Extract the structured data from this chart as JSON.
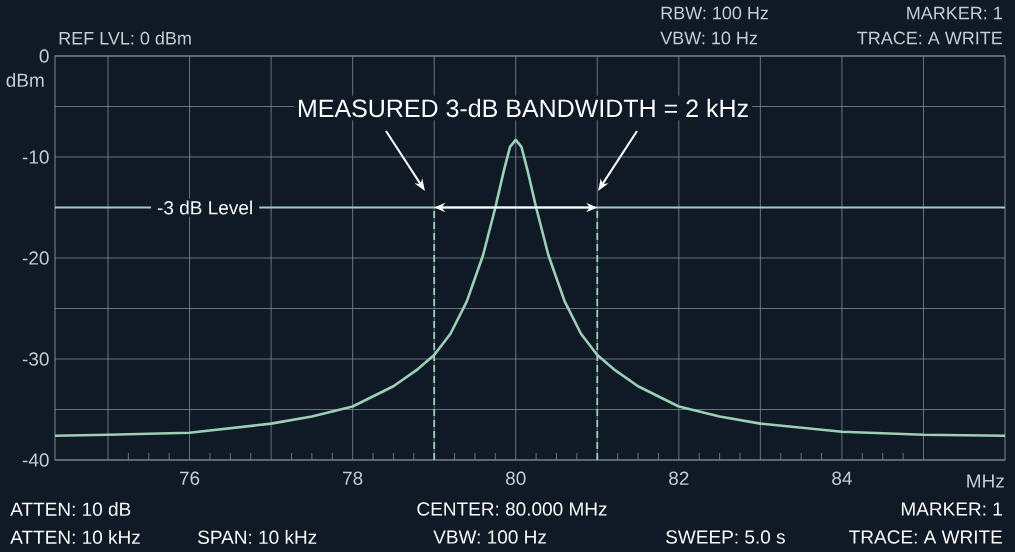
{
  "chart_data": {
    "type": "line",
    "xlabel": "MHz",
    "ylabel": "dBm",
    "x": [
      74.35,
      75,
      76,
      77,
      77.5,
      78,
      78.5,
      78.8,
      79,
      79.2,
      79.4,
      79.5,
      79.6,
      79.75,
      79.85,
      79.93,
      80,
      80.07,
      80.15,
      80.25,
      80.4,
      80.5,
      80.6,
      80.8,
      81,
      81.2,
      81.5,
      82,
      82.5,
      83,
      84,
      85,
      86
    ],
    "series": [
      {
        "color": "#9ccfb6",
        "values": [
          -37.6,
          -37.5,
          -37.3,
          -36.4,
          -35.7,
          -34.7,
          -32.7,
          -31,
          -29.6,
          -27.5,
          -24.3,
          -22,
          -19.7,
          -15,
          -11.5,
          -9,
          -8.3,
          -9,
          -11.5,
          -15,
          -19.7,
          -22,
          -24.3,
          -27.5,
          -29.6,
          -31,
          -32.7,
          -34.7,
          -35.7,
          -36.4,
          -37.2,
          -37.5,
          -37.6
        ]
      }
    ],
    "xlim": [
      74.35,
      86.0
    ],
    "ylim": [
      -40,
      0
    ],
    "xticks": [
      {
        "value": 75,
        "label": null
      },
      76,
      {
        "value": 77,
        "label": null
      },
      78,
      {
        "value": 79,
        "label": null
      },
      80,
      {
        "value": 81,
        "label": null
      },
      82,
      {
        "value": 83,
        "label": null
      },
      84,
      {
        "value": 85,
        "label": null
      }
    ],
    "yticks": [
      -40,
      {
        "value": -35,
        "label": null
      },
      -30,
      {
        "value": -25,
        "label": null
      },
      -20,
      {
        "value": -15,
        "label": null
      },
      -10,
      {
        "value": -5,
        "label": null
      },
      0
    ],
    "grid": true,
    "line_style": "solid",
    "ref_lines": [
      {
        "axis": "y",
        "value": -15,
        "label": "-3 dB Level",
        "color": "#9ccfb6"
      },
      {
        "axis": "x",
        "value": 79,
        "color": "#9ccfb6",
        "line_style": "dashed"
      },
      {
        "axis": "x",
        "value": 81,
        "color": "#9ccfb6",
        "line_style": "dashed"
      }
    ],
    "annotations": [
      "REF LVL: 0 dBm",
      "RBW: 100 Hz",
      "VBW: 10 Hz",
      "MARKER:  1",
      "TRACE: A WRITE",
      "MEASURED 3-dB BANDWIDTH = 2 kHz",
      "ATTEN: 10 dB",
      "CENTER: 80.000 MHz",
      "MARKER: 1",
      "ATTEN: 10 kHz",
      "SPAN: 10 kHz",
      "VBW: 100 Hz",
      "SWEEP: 5.0 s",
      "TRACE: A WRITE"
    ]
  }
}
